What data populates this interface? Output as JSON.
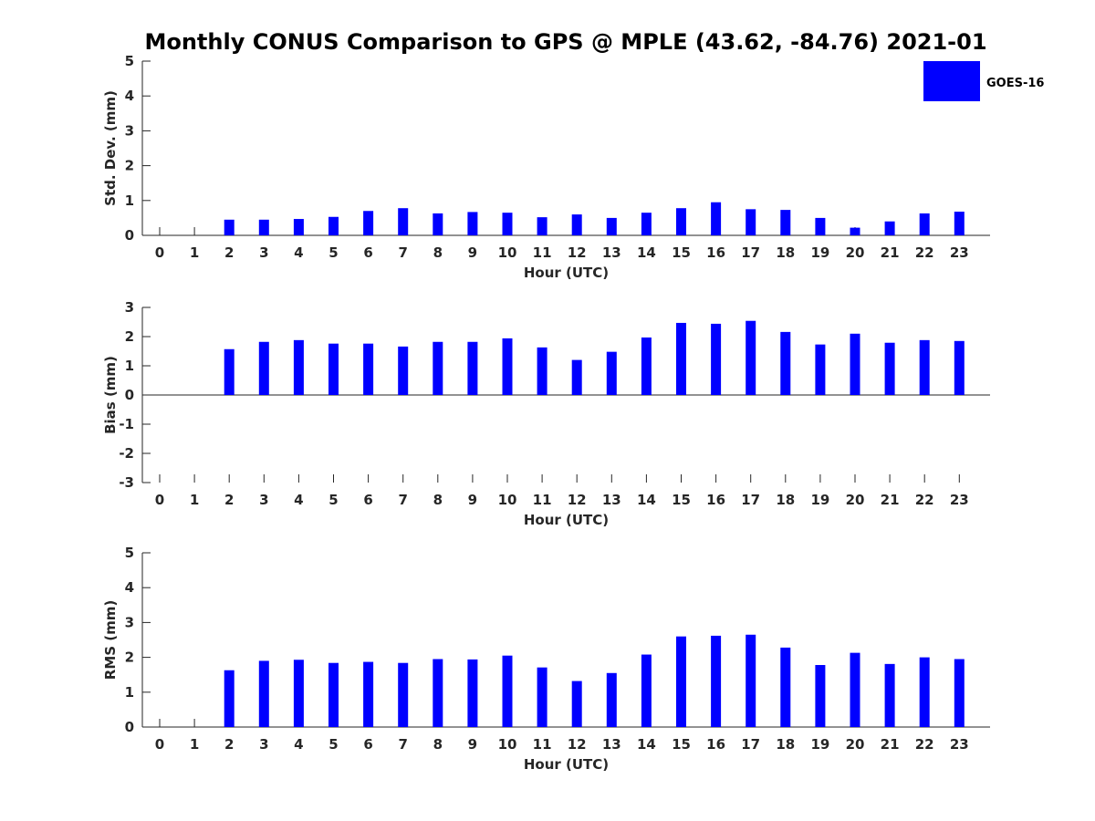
{
  "title": "Monthly CONUS Comparison to GPS @ MPLE (43.62, -84.76) 2021-01",
  "legend": {
    "label": "GOES-16",
    "color": "#0000ff",
    "placement": "top-right"
  },
  "chart_data": [
    {
      "type": "bar",
      "name": "std-dev",
      "categories": [
        "0",
        "1",
        "2",
        "3",
        "4",
        "5",
        "6",
        "7",
        "8",
        "9",
        "10",
        "11",
        "12",
        "13",
        "14",
        "15",
        "16",
        "17",
        "18",
        "19",
        "20",
        "21",
        "22",
        "23"
      ],
      "series": [
        {
          "name": "GOES-16",
          "values": [
            null,
            null,
            0.45,
            0.45,
            0.47,
            0.53,
            0.7,
            0.78,
            0.63,
            0.67,
            0.65,
            0.52,
            0.6,
            0.5,
            0.65,
            0.78,
            0.95,
            0.75,
            0.73,
            0.5,
            0.22,
            0.4,
            0.63,
            0.68
          ]
        }
      ],
      "xlabel": "Hour (UTC)",
      "ylabel": "Std. Dev. (mm)",
      "ylim": [
        0,
        5
      ],
      "yticks": [
        "0",
        "1",
        "2",
        "3",
        "4",
        "5"
      ],
      "grid": false
    },
    {
      "type": "bar",
      "name": "bias",
      "categories": [
        "0",
        "1",
        "2",
        "3",
        "4",
        "5",
        "6",
        "7",
        "8",
        "9",
        "10",
        "11",
        "12",
        "13",
        "14",
        "15",
        "16",
        "17",
        "18",
        "19",
        "20",
        "21",
        "22",
        "23"
      ],
      "series": [
        {
          "name": "GOES-16",
          "values": [
            null,
            null,
            1.57,
            1.82,
            1.88,
            1.76,
            1.76,
            1.66,
            1.82,
            1.82,
            1.94,
            1.63,
            1.2,
            1.48,
            1.97,
            2.47,
            2.44,
            2.54,
            2.16,
            1.73,
            2.1,
            1.79,
            1.88,
            1.85
          ]
        }
      ],
      "xlabel": "Hour (UTC)",
      "ylabel": "Bias (mm)",
      "ylim": [
        -3,
        3
      ],
      "yticks": [
        "-3",
        "-2",
        "-1",
        "0",
        "1",
        "2",
        "3"
      ],
      "grid": false
    },
    {
      "type": "bar",
      "name": "rms",
      "categories": [
        "0",
        "1",
        "2",
        "3",
        "4",
        "5",
        "6",
        "7",
        "8",
        "9",
        "10",
        "11",
        "12",
        "13",
        "14",
        "15",
        "16",
        "17",
        "18",
        "19",
        "20",
        "21",
        "22",
        "23"
      ],
      "series": [
        {
          "name": "GOES-16",
          "values": [
            null,
            null,
            1.63,
            1.9,
            1.93,
            1.84,
            1.87,
            1.84,
            1.95,
            1.94,
            2.05,
            1.71,
            1.32,
            1.55,
            2.08,
            2.6,
            2.62,
            2.65,
            2.28,
            1.78,
            2.13,
            1.81,
            2.0,
            1.95
          ]
        }
      ],
      "xlabel": "Hour (UTC)",
      "ylabel": "RMS (mm)",
      "ylim": [
        0,
        5
      ],
      "yticks": [
        "0",
        "1",
        "2",
        "3",
        "4",
        "5"
      ],
      "grid": false
    }
  ]
}
